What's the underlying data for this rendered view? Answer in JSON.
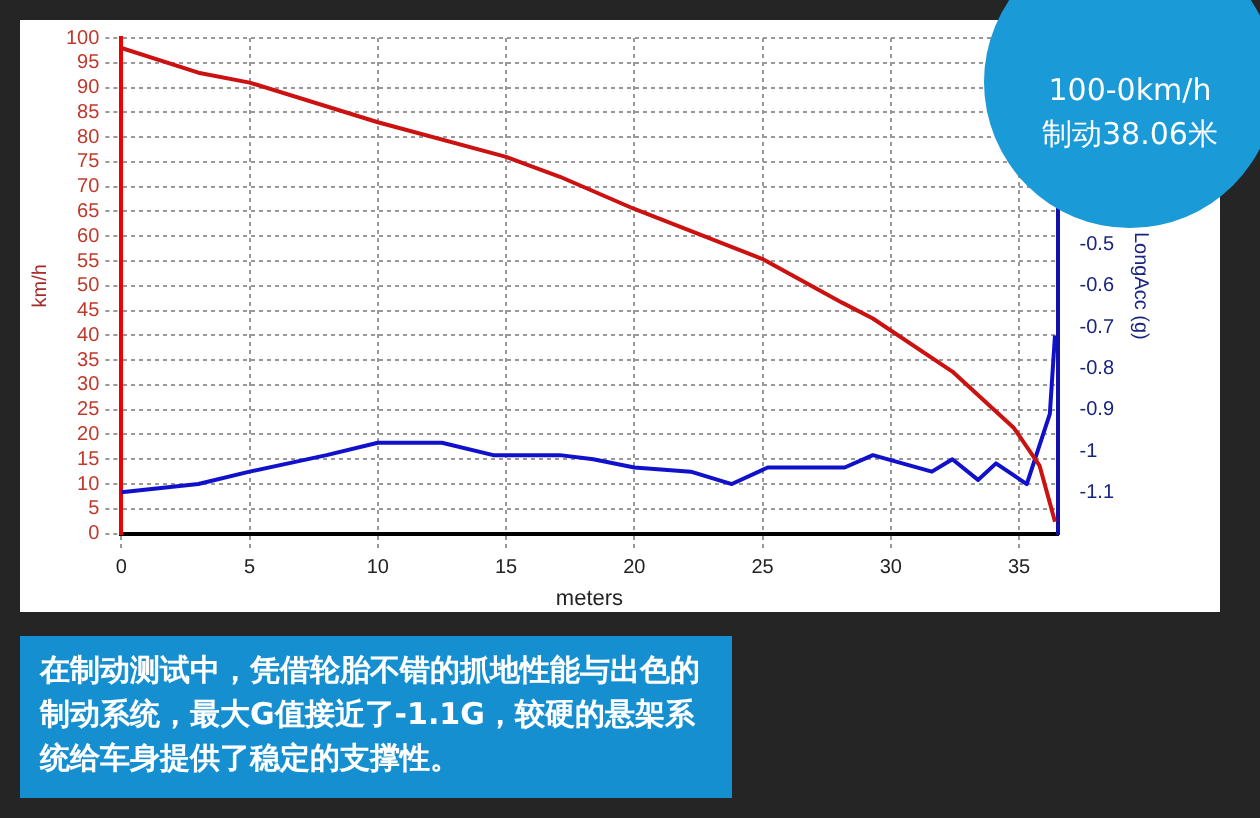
{
  "chart_data": {
    "type": "line",
    "xlabel": "meters",
    "ylabel": "km/h",
    "y2label": "LongAcc (g)",
    "xlim": [
      0,
      36.5
    ],
    "xticks": [
      0,
      5,
      10,
      15,
      20,
      25,
      30,
      35
    ],
    "ylim": [
      0,
      100
    ],
    "yticks": [
      0,
      5,
      10,
      15,
      20,
      25,
      30,
      35,
      40,
      45,
      50,
      55,
      60,
      65,
      70,
      75,
      80,
      85,
      90,
      95,
      100
    ],
    "y2lim": [
      -1.2,
      0
    ],
    "y2ticks": [
      -1.1,
      -1,
      -0.9,
      -0.8,
      -0.7,
      -0.6,
      -0.5
    ],
    "grid": true,
    "line_style": "solid",
    "marker": "none",
    "series": [
      {
        "color": "#cc1111",
        "x": [
          0,
          3,
          5,
          10,
          15,
          17.1,
          20,
          25,
          28.1,
          29.3,
          32.4,
          34.8,
          35.8,
          36.2,
          36.4
        ],
        "values": [
          98,
          93,
          91,
          83,
          76,
          72,
          65.5,
          55.4,
          46.6,
          43.4,
          32.7,
          21.3,
          13.7,
          6.2,
          2.4
        ]
      },
      {
        "color": "#1111cc",
        "axis": "y2",
        "x": [
          0,
          3,
          5,
          8,
          10,
          12.5,
          14.5,
          17.1,
          18.4,
          20,
          22.2,
          23.8,
          25.2,
          28.2,
          29.3,
          31.6,
          32.4,
          33.4,
          34.1,
          35.3,
          36.2,
          36.4
        ],
        "values": [
          -1.1,
          -1.08,
          -1.05,
          -1.01,
          -0.98,
          -0.98,
          -1.01,
          -1.01,
          -1.02,
          -1.04,
          -1.05,
          -1.08,
          -1.04,
          -1.04,
          -1.01,
          -1.05,
          -1.02,
          -1.07,
          -1.03,
          -1.08,
          -0.91,
          -0.72
        ]
      }
    ],
    "annotations": [
      "100-0km/h\n制动38.06米",
      "在制动测试中，凭借轮胎不错的抓地性能与出色的制动系统，最大G值接近了-1.1G，较硬的悬架系统给车身提供了稳定的支撑性。"
    ]
  }
}
